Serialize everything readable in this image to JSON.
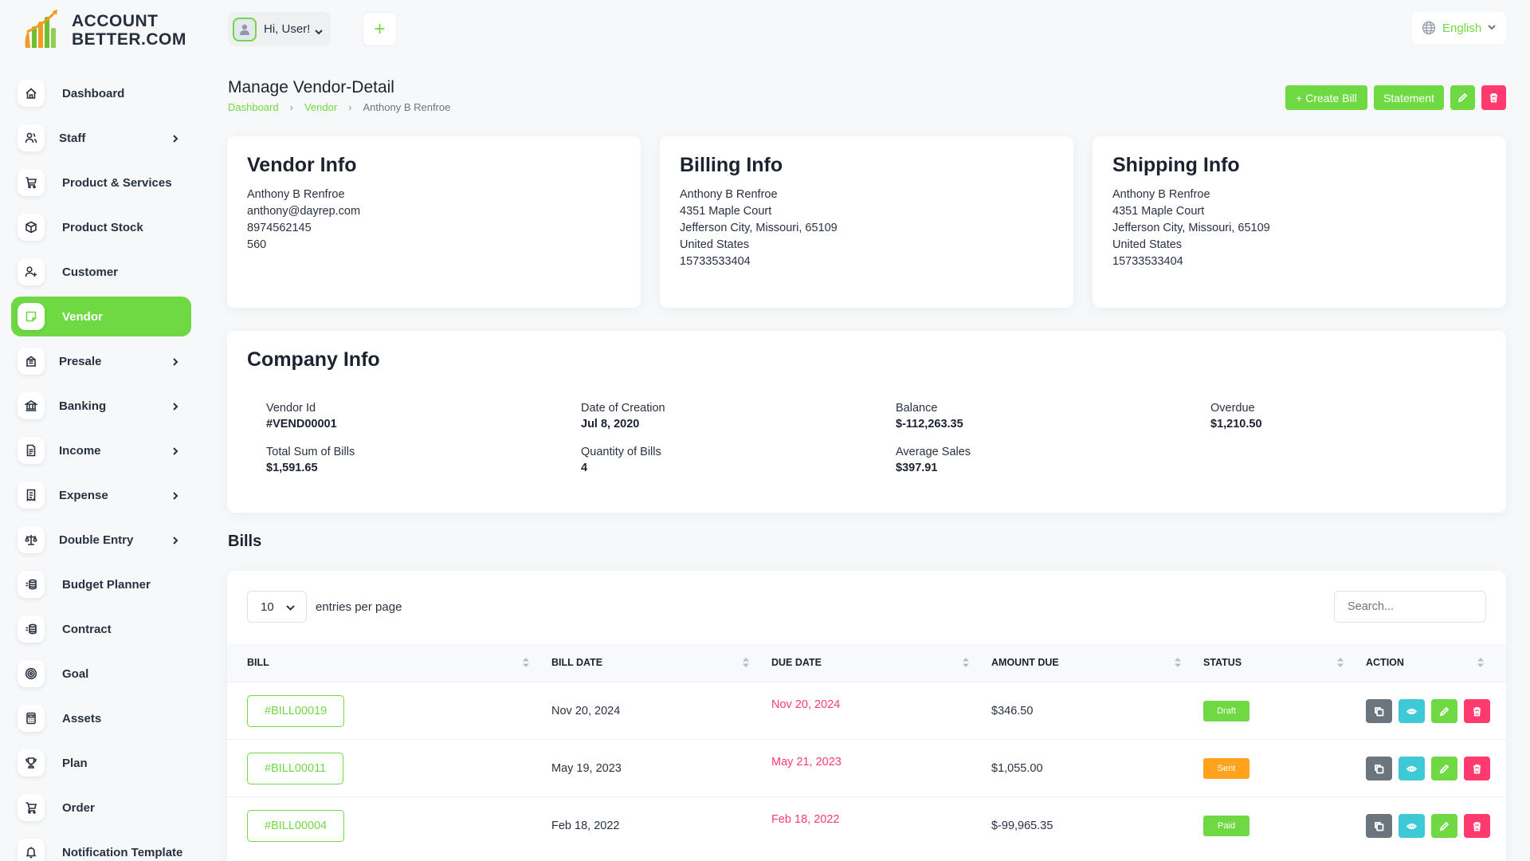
{
  "brand": {
    "line1": "ACCOUNT",
    "line2_a": "BETTER",
    "line2_b": ".COM"
  },
  "header": {
    "user_label": "Hi, User!",
    "add_label": "+",
    "language": "English"
  },
  "sidebar": {
    "items": [
      {
        "label": "Dashboard",
        "icon": "home-icon",
        "has_submenu": false,
        "active": false
      },
      {
        "label": "Staff",
        "icon": "users-icon",
        "has_submenu": true,
        "active": false
      },
      {
        "label": "Product & Services",
        "icon": "shopping-cart-icon",
        "has_submenu": false,
        "active": false
      },
      {
        "label": "Product Stock",
        "icon": "box-icon",
        "has_submenu": false,
        "active": false
      },
      {
        "label": "Customer",
        "icon": "user-plus-icon",
        "has_submenu": false,
        "active": false
      },
      {
        "label": "Vendor",
        "icon": "note-icon",
        "has_submenu": false,
        "active": true
      },
      {
        "label": "Presale",
        "icon": "building-icon",
        "has_submenu": true,
        "active": false
      },
      {
        "label": "Banking",
        "icon": "bank-icon",
        "has_submenu": true,
        "active": false
      },
      {
        "label": "Income",
        "icon": "file-invoice-icon",
        "has_submenu": true,
        "active": false
      },
      {
        "label": "Expense",
        "icon": "receipt-icon",
        "has_submenu": true,
        "active": false
      },
      {
        "label": "Double Entry",
        "icon": "scale-icon",
        "has_submenu": true,
        "active": false
      },
      {
        "label": "Budget Planner",
        "icon": "coins-icon",
        "has_submenu": false,
        "active": false
      },
      {
        "label": "Contract",
        "icon": "coins-icon",
        "has_submenu": false,
        "active": false
      },
      {
        "label": "Goal",
        "icon": "target-icon",
        "has_submenu": false,
        "active": false
      },
      {
        "label": "Assets",
        "icon": "calculator-icon",
        "has_submenu": false,
        "active": false
      },
      {
        "label": "Plan",
        "icon": "trophy-icon",
        "has_submenu": false,
        "active": false
      },
      {
        "label": "Order",
        "icon": "cart-icon",
        "has_submenu": false,
        "active": false
      },
      {
        "label": "Notification Template",
        "icon": "bell-icon",
        "has_submenu": false,
        "active": false
      }
    ]
  },
  "page": {
    "title": "Manage Vendor-Detail",
    "breadcrumb": [
      "Dashboard",
      "Vendor",
      "Anthony B Renfroe"
    ]
  },
  "actions": {
    "create_bill": "+ Create Bill",
    "statement": "Statement",
    "edit": "edit-icon",
    "delete": "trash-icon"
  },
  "vendor_info": {
    "title": "Vendor Info",
    "lines": [
      "Anthony B Renfroe",
      "anthony@dayrep.com",
      "8974562145",
      "560"
    ]
  },
  "billing_info": {
    "title": "Billing Info",
    "lines": [
      "Anthony B Renfroe",
      "4351 Maple Court",
      "Jefferson City, Missouri, 65109",
      "United States",
      "15733533404"
    ]
  },
  "shipping_info": {
    "title": "Shipping Info",
    "lines": [
      "Anthony B Renfroe",
      "4351 Maple Court",
      "Jefferson City, Missouri, 65109",
      "United States",
      "15733533404"
    ]
  },
  "company_info": {
    "title": "Company Info",
    "items": [
      {
        "label": "Vendor Id",
        "value": "#VEND00001"
      },
      {
        "label": "Date of Creation",
        "value": "Jul 8, 2020"
      },
      {
        "label": "Balance",
        "value": "$-112,263.35"
      },
      {
        "label": "Overdue",
        "value": "$1,210.50"
      },
      {
        "label": "Total Sum of Bills",
        "value": "$1,591.65"
      },
      {
        "label": "Quantity of Bills",
        "value": "4"
      },
      {
        "label": "Average Sales",
        "value": "$397.91"
      }
    ]
  },
  "bills": {
    "title": "Bills",
    "page_size": "10",
    "entries_label": "entries per page",
    "search_placeholder": "Search...",
    "columns": [
      "BILL",
      "BILL DATE",
      "DUE DATE",
      "AMOUNT DUE",
      "STATUS",
      "ACTION"
    ],
    "rows": [
      {
        "bill": "#BILL00019",
        "bill_date": "Nov 20, 2024",
        "due_date": "Nov 20, 2024",
        "amount": "$346.50",
        "status": "Draft",
        "status_color": "#6fd943"
      },
      {
        "bill": "#BILL00011",
        "bill_date": "May 19, 2023",
        "due_date": "May 21, 2023",
        "amount": "$1,055.00",
        "status": "Sent",
        "status_color": "#ffa21d"
      },
      {
        "bill": "#BILL00004",
        "bill_date": "Feb 18, 2022",
        "due_date": "Feb 18, 2022",
        "amount": "$-99,965.35",
        "status": "Paid",
        "status_color": "#6fd943"
      }
    ]
  },
  "colors": {
    "primary": "#6fd943",
    "danger": "#ff3a6e",
    "info": "#3ec9d6",
    "warning": "#ffa21d",
    "secondary": "#6c757d"
  }
}
